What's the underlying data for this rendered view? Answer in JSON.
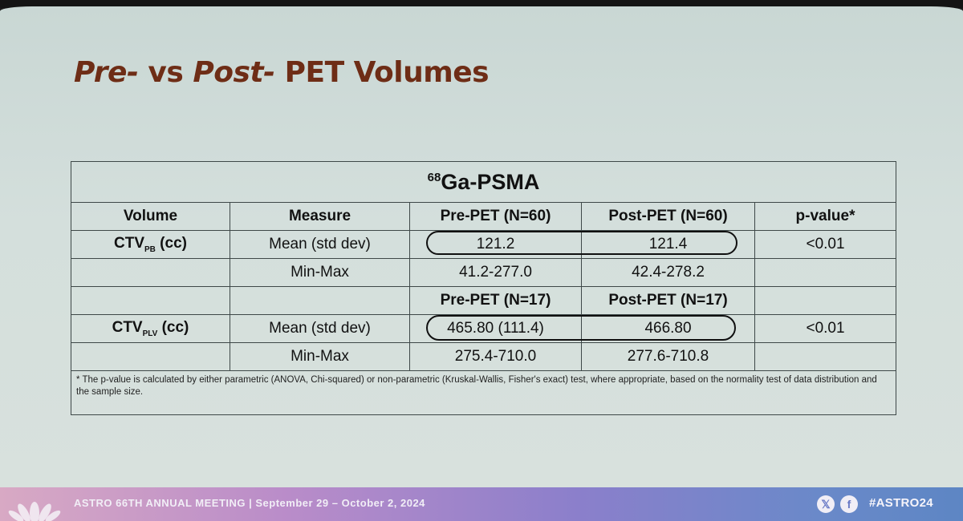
{
  "slide": {
    "title_pre": "Pre-",
    "title_vs": " vs ",
    "title_post": "Post-",
    "title_rest": " PET Volumes"
  },
  "table": {
    "section_sup": "68",
    "section_title": "Ga-PSMA",
    "header": {
      "volume": "Volume",
      "measure": "Measure",
      "pre": "Pre-PET (N=60)",
      "post": "Post-PET (N=60)",
      "pvalue": "p-value*"
    },
    "group1": {
      "label": "CTV",
      "label_sub": "PB",
      "label_unit": " (cc)",
      "mean_label": "Mean (std dev)",
      "mean_pre": "121.2",
      "mean_post": "121.4",
      "pvalue": "<0.01",
      "minmax_label": "Min-Max",
      "minmax_pre": "41.2-277.0",
      "minmax_post": "42.4-278.2"
    },
    "header2": {
      "pre": "Pre-PET (N=17)",
      "post": "Post-PET (N=17)"
    },
    "group2": {
      "label": "CTV",
      "label_sub": "PLV",
      "label_unit": " (cc)",
      "mean_label": "Mean (std dev)",
      "mean_pre": "465.80 (111.4)",
      "mean_post": "466.80",
      "pvalue": "<0.01",
      "minmax_label": "Min-Max",
      "minmax_pre": "275.4-710.0",
      "minmax_post": "277.6-710.8"
    },
    "footnote": "* The p-value is calculated by either parametric (ANOVA, Chi-squared) or non-parametric (Kruskal-Wallis, Fisher's exact) test, where appropriate, based on the normality test of data distribution and the sample size."
  },
  "footer": {
    "meeting": "ASTRO 66TH ANNUAL MEETING  |  September 29 – October 2, 2024",
    "x_glyph": "𝕏",
    "fb_glyph": "f",
    "hashtag": "#ASTRO24",
    "icons": [
      "x-icon",
      "facebook-icon"
    ],
    "colors": {
      "title": "#6e2d16",
      "footer_start": "#d8a9c4",
      "footer_end": "#5d86c4"
    }
  }
}
